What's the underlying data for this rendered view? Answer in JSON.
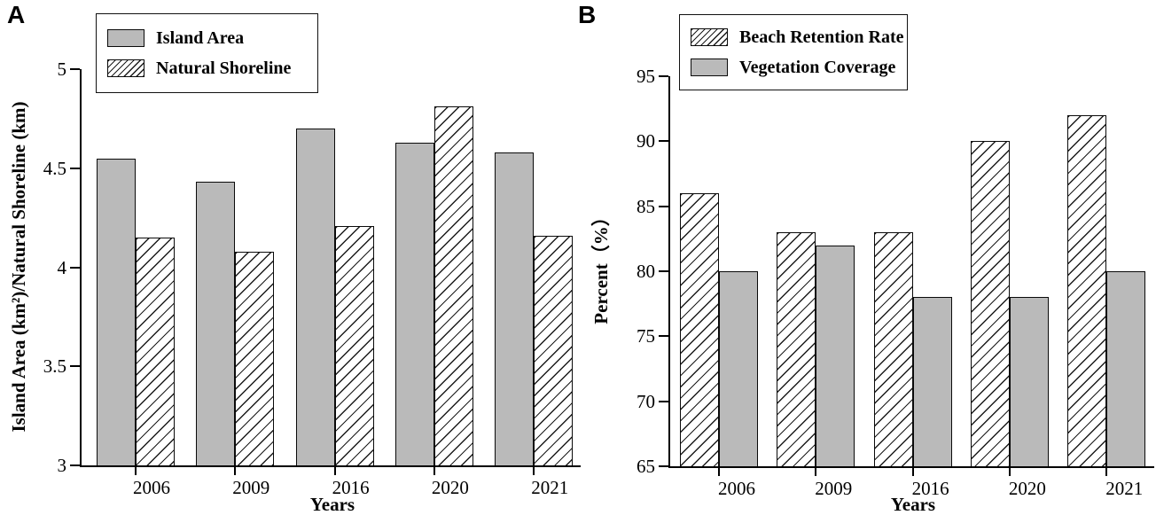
{
  "colors": {
    "background": "#ffffff",
    "bar_fill": "#bababa",
    "bar_edge": "#0a0a0a",
    "hatch_line": "#1c1c1c",
    "axis": "#000000"
  },
  "chart_data": [
    {
      "panel": "A",
      "type": "bar",
      "categories": [
        "2006",
        "2009",
        "2016",
        "2020",
        "2021"
      ],
      "series": [
        {
          "name": "Island Area",
          "pattern": "solid",
          "values": [
            4.55,
            4.43,
            4.7,
            4.63,
            4.58
          ]
        },
        {
          "name": "Natural Shoreline",
          "pattern": "hatch",
          "values": [
            4.15,
            4.08,
            4.21,
            4.81,
            4.16
          ]
        }
      ],
      "title": "",
      "xlabel": "Years",
      "ylabel": "Island Area (km²)/Natural Shoreline (km)",
      "ylim": [
        3,
        5
      ],
      "yticks": [
        3,
        3.5,
        4,
        4.5,
        5
      ],
      "grid": false,
      "legend_position": "top-left"
    },
    {
      "panel": "B",
      "type": "bar",
      "categories": [
        "2006",
        "2009",
        "2016",
        "2020",
        "2021"
      ],
      "series": [
        {
          "name": "Beach Retention Rate",
          "pattern": "hatch",
          "values": [
            86,
            83,
            83,
            90,
            92
          ]
        },
        {
          "name": "Vegetation Coverage",
          "pattern": "solid",
          "values": [
            80,
            82,
            78,
            78,
            80
          ]
        }
      ],
      "title": "",
      "xlabel": "Years",
      "ylabel": "Percent（%）",
      "ylim": [
        65,
        95
      ],
      "yticks": [
        65,
        70,
        75,
        80,
        85,
        90,
        95
      ],
      "grid": false,
      "legend_position": "top-left"
    }
  ]
}
